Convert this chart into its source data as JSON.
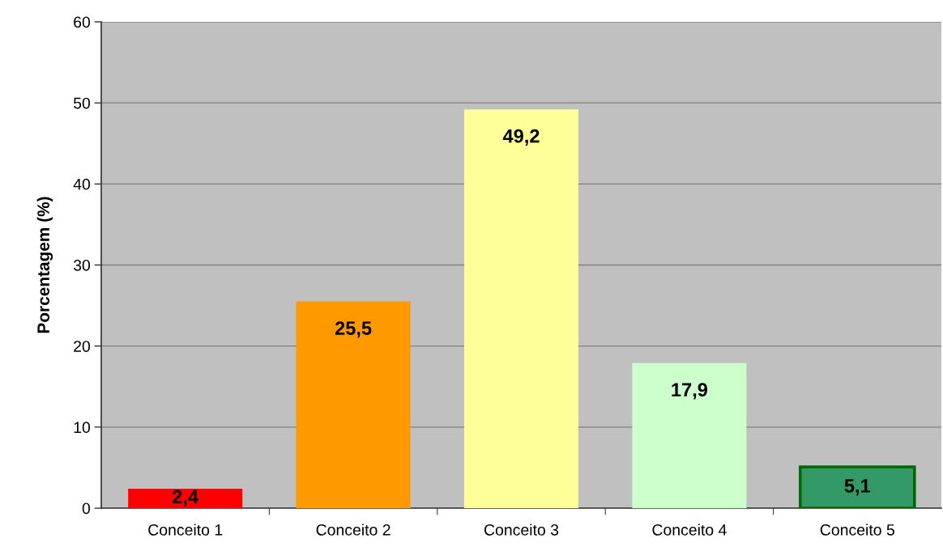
{
  "chart_data": {
    "type": "bar",
    "ylabel": "Porcentagem (%)",
    "categories": [
      "Conceito 1",
      "Conceito 2",
      "Conceito 3",
      "Conceito 4",
      "Conceito 5"
    ],
    "values": [
      2.4,
      25.5,
      49.2,
      17.9,
      5.1
    ],
    "colors": [
      "#ff0000",
      "#ff9900",
      "#ffff99",
      "#ccffcc",
      "#339966"
    ],
    "value_labels": [
      "2,4",
      "25,5",
      "49,2",
      "17,9",
      "5,1"
    ],
    "ylim": [
      0,
      60
    ],
    "yticks": [
      0,
      10,
      20,
      30,
      40,
      50,
      60
    ],
    "grid": "y",
    "legend": false
  }
}
